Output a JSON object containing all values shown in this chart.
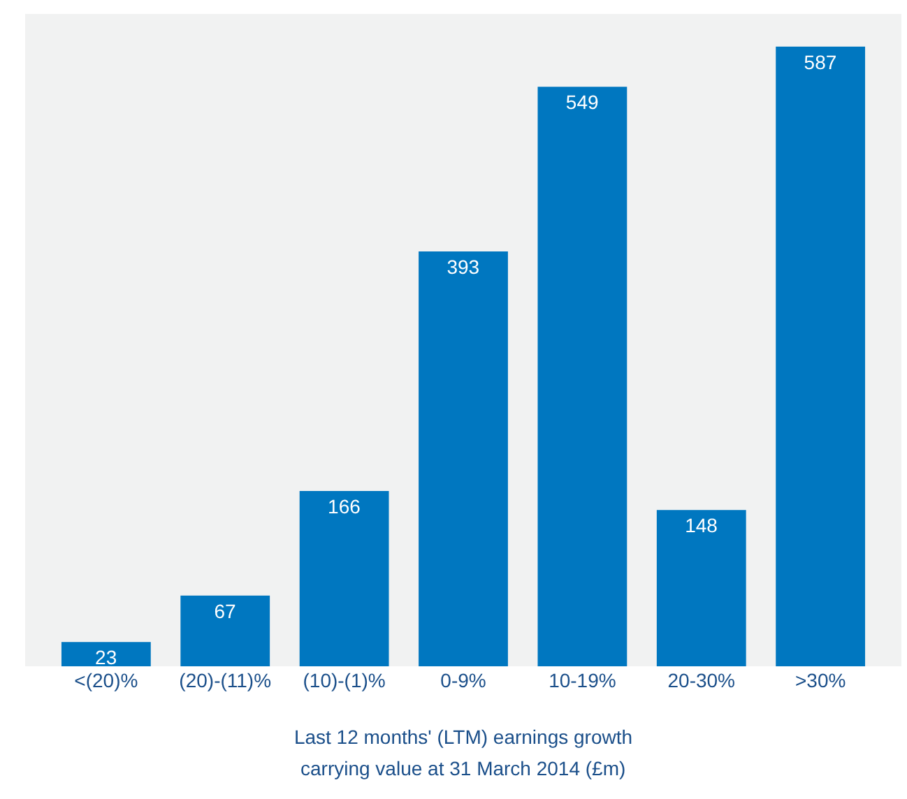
{
  "chart_data": {
    "type": "bar",
    "categories": [
      "<(20)%",
      "(20)-(11)%",
      "(10)-(1)%",
      "0-9%",
      "10-19%",
      "20-30%",
      ">30%"
    ],
    "values": [
      23,
      67,
      166,
      393,
      549,
      148,
      587
    ],
    "color": "#0077c0",
    "data_labels": true,
    "grid": false,
    "legend": false,
    "xlabel": "Last 12 months' (LTM) earnings growth",
    "annotations": [
      "carrying value at 31 March 2014 (£m)"
    ]
  }
}
